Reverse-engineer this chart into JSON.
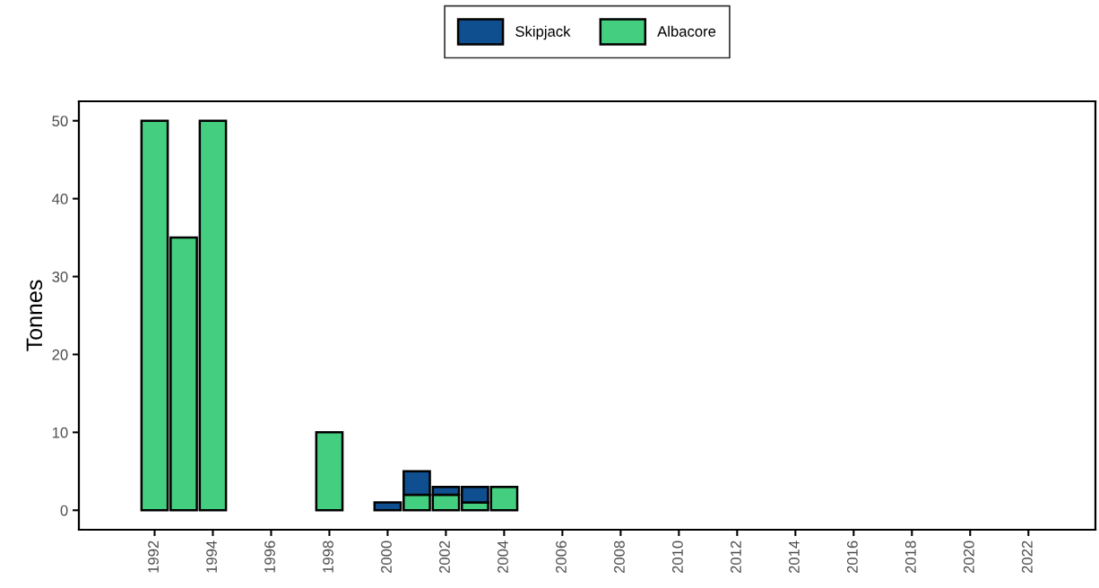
{
  "chart_data": {
    "type": "bar",
    "stacked": true,
    "ylabel": "Tonnes",
    "x": [
      1992,
      1993,
      1994,
      1998,
      2000,
      2001,
      2002,
      2003,
      2004
    ],
    "series": [
      {
        "name": "Albacore",
        "color": "#44cf80",
        "values": [
          50,
          35,
          50,
          10,
          null,
          2,
          2,
          1,
          3
        ]
      },
      {
        "name": "Skipjack",
        "color": "#0f4f8f",
        "values": [
          null,
          null,
          null,
          null,
          1,
          3,
          1,
          2,
          null
        ]
      }
    ],
    "xlim": [
      1989.4,
      2024.3
    ],
    "xticks": [
      1992,
      1994,
      1996,
      1998,
      2000,
      2002,
      2004,
      2006,
      2008,
      2010,
      2012,
      2014,
      2016,
      2018,
      2020,
      2022
    ],
    "ylim": [
      -2.5,
      52.5
    ],
    "yticks": [
      0,
      10,
      20,
      30,
      40,
      50
    ],
    "grid": false,
    "legend": "top"
  }
}
